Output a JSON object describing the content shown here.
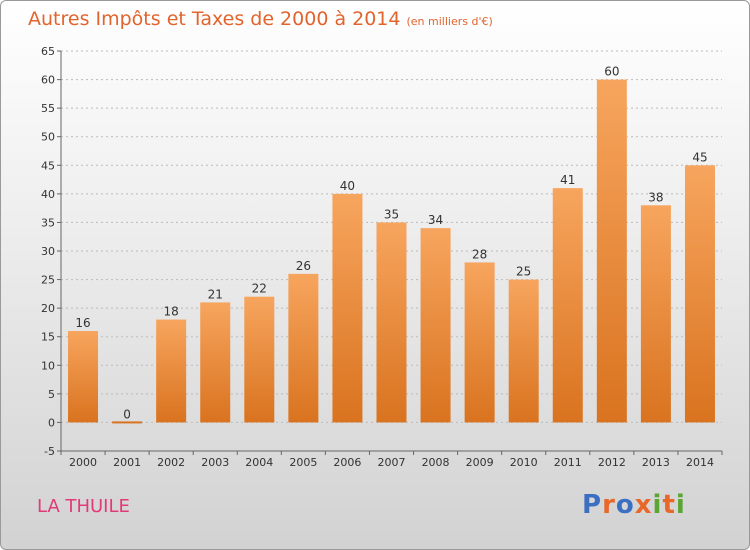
{
  "title": "Autres Impôts et Taxes de 2000 à 2014",
  "title_unit": "(en milliers d'€)",
  "commune": "LA THUILE",
  "logo_letters": [
    "P",
    "r",
    "o",
    "x",
    "i",
    "t",
    "i"
  ],
  "logo_colors": [
    "#3a6fc2",
    "#e8672a",
    "#3a6fc2",
    "#e8672a",
    "#5aa534",
    "#e8672a",
    "#5aa534"
  ],
  "colors": {
    "title": "#e2642d",
    "bar_light": "#f7a55e",
    "bar_dark": "#d9731f",
    "commune": "#e23a78"
  },
  "chart_data": {
    "type": "bar",
    "categories": [
      "2000",
      "2001",
      "2002",
      "2003",
      "2004",
      "2005",
      "2006",
      "2007",
      "2008",
      "2009",
      "2010",
      "2011",
      "2012",
      "2013",
      "2014"
    ],
    "values": [
      16,
      0,
      18,
      21,
      22,
      26,
      40,
      35,
      34,
      28,
      25,
      41,
      60,
      38,
      45
    ],
    "ylim": [
      -5,
      65
    ],
    "yticks": [
      -5,
      0,
      5,
      10,
      15,
      20,
      25,
      30,
      35,
      40,
      45,
      50,
      55,
      60,
      65
    ],
    "grid": "horizontal dashed",
    "title": "Autres Impôts et Taxes de 2000 à 2014",
    "xlabel": "",
    "ylabel": ""
  }
}
